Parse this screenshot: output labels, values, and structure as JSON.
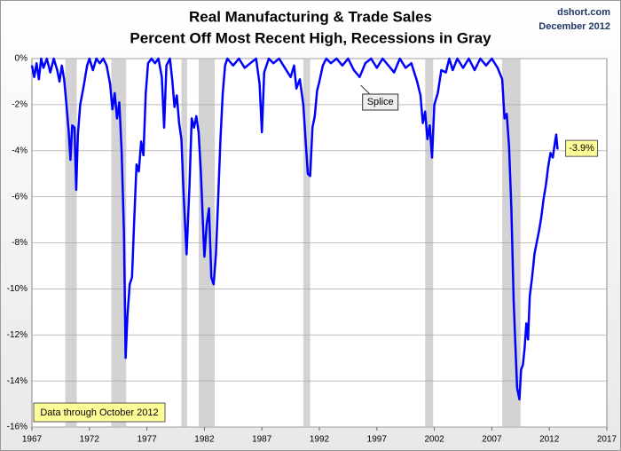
{
  "chart_data": {
    "type": "line",
    "title": "Real Manufacturing & Trade Sales",
    "subtitle": "Percent Off Most Recent High, Recessions in Gray",
    "annotations": {
      "source": "dshort.com",
      "date": "December 2012",
      "note": "Data through October 2012",
      "splice_label": "Splice",
      "end_label": "-3.9%"
    },
    "color": "#0000ff",
    "recession_color": "#d3d3d3",
    "recessions": [
      [
        1969.9,
        1970.9
      ],
      [
        1973.9,
        1975.2
      ],
      [
        1980.0,
        1980.5
      ],
      [
        1981.5,
        1982.9
      ],
      [
        1990.6,
        1991.2
      ],
      [
        2001.2,
        2001.9
      ],
      [
        2007.9,
        2009.5
      ]
    ],
    "x": [
      1967.0,
      1967.2,
      1967.4,
      1967.6,
      1967.8,
      1968.0,
      1968.3,
      1968.6,
      1968.9,
      1969.2,
      1969.4,
      1969.6,
      1969.8,
      1970.0,
      1970.2,
      1970.35,
      1970.5,
      1970.7,
      1970.85,
      1971.0,
      1971.2,
      1971.5,
      1971.8,
      1972.0,
      1972.3,
      1972.6,
      1972.9,
      1973.2,
      1973.5,
      1973.8,
      1974.0,
      1974.2,
      1974.4,
      1974.6,
      1974.8,
      1975.0,
      1975.15,
      1975.3,
      1975.5,
      1975.7,
      1975.9,
      1976.1,
      1976.3,
      1976.5,
      1976.7,
      1976.9,
      1977.1,
      1977.4,
      1977.7,
      1978.0,
      1978.3,
      1978.5,
      1978.7,
      1979.0,
      1979.2,
      1979.4,
      1979.6,
      1979.8,
      1980.0,
      1980.2,
      1980.45,
      1980.7,
      1980.9,
      1981.1,
      1981.3,
      1981.5,
      1981.7,
      1981.9,
      1982.0,
      1982.2,
      1982.4,
      1982.6,
      1982.8,
      1983.0,
      1983.2,
      1983.4,
      1983.6,
      1983.8,
      1984.0,
      1984.5,
      1985.0,
      1985.5,
      1986.0,
      1986.5,
      1986.8,
      1987.0,
      1987.2,
      1987.6,
      1988.0,
      1988.5,
      1989.0,
      1989.5,
      1989.8,
      1990.0,
      1990.3,
      1990.6,
      1990.8,
      1991.0,
      1991.2,
      1991.4,
      1991.6,
      1991.8,
      1992.0,
      1992.3,
      1992.6,
      1993.0,
      1993.5,
      1994.0,
      1994.5,
      1995.0,
      1995.5,
      1996.0,
      1996.5,
      1997.0,
      1997.5,
      1998.0,
      1998.5,
      1999.0,
      1999.5,
      2000.0,
      2000.5,
      2000.8,
      2001.0,
      2001.2,
      2001.4,
      2001.6,
      2001.8,
      2002.0,
      2002.3,
      2002.6,
      2003.0,
      2003.3,
      2003.6,
      2004.0,
      2004.5,
      2005.0,
      2005.5,
      2006.0,
      2006.5,
      2007.0,
      2007.5,
      2007.9,
      2008.1,
      2008.3,
      2008.5,
      2008.7,
      2008.9,
      2009.05,
      2009.2,
      2009.4,
      2009.55,
      2009.7,
      2009.85,
      2010.0,
      2010.15,
      2010.3,
      2010.5,
      2010.7,
      2010.9,
      2011.1,
      2011.3,
      2011.5,
      2011.7,
      2011.9,
      2012.1,
      2012.3,
      2012.5,
      2012.6,
      2012.7,
      2012.8
    ],
    "values": [
      -0.3,
      -0.8,
      -0.2,
      -0.9,
      0,
      -0.4,
      0,
      -0.6,
      0,
      -0.5,
      -1.0,
      -0.3,
      -0.9,
      -2.0,
      -3.2,
      -4.4,
      -2.9,
      -3.0,
      -5.7,
      -3.3,
      -2.0,
      -1.2,
      -0.3,
      0,
      -0.5,
      0,
      -0.2,
      0,
      -0.3,
      -1.1,
      -2.2,
      -1.5,
      -2.6,
      -1.9,
      -4.0,
      -7.5,
      -13.0,
      -11.2,
      -9.8,
      -9.5,
      -7.0,
      -4.6,
      -4.9,
      -3.6,
      -4.2,
      -1.5,
      -0.2,
      0,
      -0.2,
      0,
      -0.8,
      -3.0,
      -0.3,
      0,
      -0.9,
      -2.1,
      -1.6,
      -2.8,
      -3.5,
      -6.0,
      -8.5,
      -5.5,
      -2.6,
      -3.0,
      -2.5,
      -3.2,
      -5.0,
      -7.5,
      -8.6,
      -7.2,
      -6.5,
      -9.5,
      -9.8,
      -8.5,
      -6.0,
      -3.5,
      -1.5,
      -0.3,
      0,
      -0.3,
      0,
      -0.4,
      -0.2,
      0,
      -1.1,
      -3.2,
      -0.6,
      0,
      -0.2,
      0,
      -0.4,
      -0.8,
      -0.3,
      -1.3,
      -0.9,
      -2.0,
      -3.5,
      -5.0,
      -5.1,
      -3.0,
      -2.5,
      -1.4,
      -1.0,
      -0.3,
      0,
      -0.2,
      0,
      -0.3,
      0,
      -0.5,
      -0.8,
      -0.2,
      0,
      -0.4,
      0,
      -0.3,
      -0.6,
      0,
      -0.4,
      -0.2,
      -1.0,
      -1.6,
      -2.8,
      -2.3,
      -3.5,
      -2.9,
      -4.3,
      -2.0,
      -1.5,
      -0.5,
      -0.6,
      0,
      -0.5,
      0,
      -0.4,
      0,
      -0.5,
      0,
      -0.3,
      0,
      -0.4,
      -0.9,
      -2.6,
      -2.4,
      -3.8,
      -6.5,
      -10.5,
      -12.5,
      -14.3,
      -14.8,
      -13.5,
      -13.3,
      -12.6,
      -11.5,
      -12.2,
      -10.3,
      -9.5,
      -8.5,
      -8.0,
      -7.5,
      -6.9,
      -6.1,
      -5.5,
      -4.7,
      -4.1,
      -4.3,
      -3.6,
      -3.3,
      -3.9,
      -3.9
    ],
    "xlim": [
      1967,
      2017
    ],
    "xticks": [
      1967,
      1972,
      1977,
      1982,
      1987,
      1992,
      1997,
      2002,
      2007,
      2012,
      2017
    ],
    "ylim": [
      -16,
      0
    ],
    "yticks": [
      {
        "value": 0,
        "label": "0%"
      },
      {
        "value": -2,
        "label": "-2%"
      },
      {
        "value": -4,
        "label": "-4%"
      },
      {
        "value": -6,
        "label": "-6%"
      },
      {
        "value": -8,
        "label": "-8%"
      },
      {
        "value": -10,
        "label": "-10%"
      },
      {
        "value": -12,
        "label": "-12%"
      },
      {
        "value": -14,
        "label": "-14%"
      },
      {
        "value": -16,
        "label": "-16%"
      }
    ],
    "grid": true
  }
}
